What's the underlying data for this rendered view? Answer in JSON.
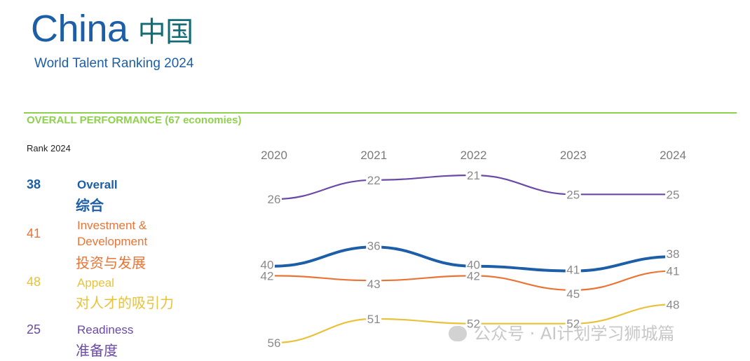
{
  "header": {
    "title": "China",
    "title_cn": "中国",
    "subtitle": "World Talent Ranking 2024",
    "section_label": "OVERALL PERFORMANCE  (67 economies)",
    "rank_header": "Rank 2024"
  },
  "factors": [
    {
      "rank": "38",
      "label": "Overall",
      "label_cn": "综合",
      "color": "#1d5ea8"
    },
    {
      "rank": "41",
      "label": "Investment & Development",
      "label_cn": "投资与发展",
      "color": "#ea7435"
    },
    {
      "rank": "48",
      "label": "Appeal",
      "label_cn": "对人才的吸引力",
      "color": "#e8c23a"
    },
    {
      "rank": "25",
      "label": "Readiness",
      "label_cn": "准备度",
      "color": "#6a4aa6"
    }
  ],
  "chart_data": {
    "type": "line",
    "x": [
      "2020",
      "2021",
      "2022",
      "2023",
      "2024"
    ],
    "series": [
      {
        "name": "Readiness",
        "values": [
          26,
          22,
          21,
          25,
          25
        ],
        "color": "#6a4aa6"
      },
      {
        "name": "Overall",
        "values": [
          40,
          36,
          40,
          41,
          38
        ],
        "color": "#1d5ea8"
      },
      {
        "name": "Investment & Development",
        "values": [
          42,
          43,
          42,
          45,
          41
        ],
        "color": "#ea7435"
      },
      {
        "name": "Appeal",
        "values": [
          56,
          51,
          52,
          52,
          48
        ],
        "color": "#e8c23a"
      }
    ],
    "y_inverted": true,
    "ylim": [
      20,
      56
    ],
    "grid": false,
    "legend": "left"
  },
  "watermark": "公众号 · AI计划学习狮城篇"
}
